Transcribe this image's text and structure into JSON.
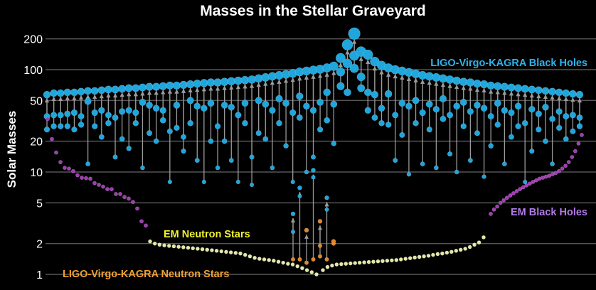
{
  "chart_data": {
    "type": "scatter",
    "title": "Masses in the Stellar Graveyard",
    "ylabel": "Solar Masses",
    "xlabel": "",
    "yscale": "log",
    "ylim": [
      0.9,
      240
    ],
    "yticks": [
      1,
      2,
      5,
      10,
      20,
      50,
      100,
      200
    ],
    "ytick_labels": [
      "1",
      "2",
      "5",
      "10",
      "20",
      "50",
      "100",
      "200"
    ],
    "grid": true,
    "colors": {
      "lvk_bh": "#1fa6dc",
      "em_bh": "#a23ab5",
      "em_ns": "#e4e8a6",
      "lvk_ns": "#e0862c",
      "arrow": "#9a9a9a",
      "lvk_bh_label": "#2fb2ea",
      "em_bh_label": "#b27ae6",
      "em_ns_label": "#f2f230",
      "lvk_ns_label": "#f0a030"
    },
    "labels": {
      "lvk_bh": "LIGO-Virgo-KAGRA Black Holes",
      "em_bh": "EM Black Holes",
      "em_ns": "EM Neutron Stars",
      "lvk_ns": "LIGO-Virgo-KAGRA Neutron Stars"
    },
    "bh_mergers_note_fields": [
      "m1",
      "m2",
      "final"
    ],
    "bh_mergers": [
      [
        35,
        26,
        57
      ],
      [
        36,
        28,
        59
      ],
      [
        36,
        28,
        59
      ],
      [
        37,
        28,
        60
      ],
      [
        38,
        26,
        60
      ],
      [
        35,
        29,
        61
      ],
      [
        49,
        12,
        62
      ],
      [
        38,
        28,
        62
      ],
      [
        40,
        22,
        63
      ],
      [
        36,
        30,
        64
      ],
      [
        34,
        14,
        64
      ],
      [
        39,
        21,
        65
      ],
      [
        40,
        17,
        66
      ],
      [
        38,
        30,
        66
      ],
      [
        48,
        11,
        67
      ],
      [
        45,
        24,
        68
      ],
      [
        42,
        20,
        68
      ],
      [
        40,
        32,
        69
      ],
      [
        25,
        8,
        70
      ],
      [
        45,
        27,
        70
      ],
      [
        22,
        16,
        71
      ],
      [
        50,
        30,
        72
      ],
      [
        44,
        13,
        73
      ],
      [
        42,
        8,
        74
      ],
      [
        47,
        20,
        75
      ],
      [
        28,
        11,
        75
      ],
      [
        45,
        20,
        76
      ],
      [
        43,
        13,
        77
      ],
      [
        36,
        8,
        78
      ],
      [
        47,
        30,
        79
      ],
      [
        14,
        7.5,
        80
      ],
      [
        50,
        24,
        82
      ],
      [
        46,
        21,
        84
      ],
      [
        40,
        11,
        86
      ],
      [
        52,
        30,
        88
      ],
      [
        47,
        18,
        90
      ],
      [
        38,
        8,
        92
      ],
      [
        55,
        34,
        95
      ],
      [
        44,
        10,
        97
      ],
      [
        40,
        14,
        99
      ],
      [
        48,
        26,
        101
      ],
      [
        60,
        32,
        104
      ],
      [
        46,
        19,
        108
      ],
      [
        95,
        69,
        130
      ],
      [
        115,
        60,
        175
      ],
      [
        137,
        103,
        225
      ],
      [
        85,
        66,
        150
      ],
      [
        60,
        40,
        140
      ],
      [
        57,
        34,
        120
      ],
      [
        42,
        30,
        110
      ],
      [
        58,
        29,
        104
      ],
      [
        36,
        13,
        100
      ],
      [
        47,
        23,
        97
      ],
      [
        44,
        9.5,
        94
      ],
      [
        50,
        30,
        91
      ],
      [
        38,
        12,
        88
      ],
      [
        46,
        26,
        86
      ],
      [
        41,
        11,
        84
      ],
      [
        52,
        33,
        82
      ],
      [
        36,
        15,
        80
      ],
      [
        44,
        10,
        78
      ],
      [
        48,
        28,
        76
      ],
      [
        39,
        13,
        75
      ],
      [
        45,
        24,
        73
      ],
      [
        42,
        9,
        72
      ],
      [
        35,
        18,
        70
      ],
      [
        47,
        29,
        69
      ],
      [
        40,
        12,
        68
      ],
      [
        38,
        22,
        67
      ],
      [
        44,
        28,
        66
      ],
      [
        30,
        8,
        65
      ],
      [
        41,
        16,
        64
      ],
      [
        37,
        26,
        63
      ],
      [
        43,
        20,
        62
      ],
      [
        33,
        12,
        61
      ],
      [
        39,
        27,
        60
      ],
      [
        35,
        21,
        59
      ],
      [
        36,
        25,
        58
      ],
      [
        34,
        28,
        57
      ]
    ],
    "ns_events": [
      {
        "parts": [
          [
            "ns",
            1.4
          ],
          [
            "bh",
            2.6
          ]
        ],
        "final": [
          "bh",
          3.9
        ]
      },
      {
        "parts": [
          [
            "ns",
            1.4
          ],
          [
            "bh",
            5.8
          ]
        ],
        "final": [
          "bh",
          7.0
        ]
      },
      {
        "parts": [
          [
            "ns",
            1.3
          ]
        ],
        "final": [
          "ns",
          2.7
        ]
      },
      {
        "parts": [
          [
            "ns",
            1.4
          ],
          [
            "bh",
            8.9
          ]
        ],
        "final": [
          "bh",
          10.4
        ]
      },
      {
        "parts": [
          [
            "ns",
            1.5
          ],
          [
            "ns",
            1.9
          ]
        ],
        "final": [
          "ns",
          3.3
        ]
      },
      {
        "parts": [
          [
            "ns",
            1.4
          ],
          [
            "bh",
            4.3
          ]
        ],
        "final": [
          "bh",
          5.6
        ]
      },
      {
        "parts": [
          [
            "ns",
            2.0
          ]
        ],
        "final": [
          "ns",
          2.1
        ]
      }
    ],
    "em_bh_left": [
      33,
      21,
      15.5,
      12.5,
      11,
      10.8,
      10.2,
      9.3,
      8.8,
      8.7,
      8.6,
      7.8,
      7.5,
      7.2,
      6.8,
      6.8,
      6.1,
      6.1,
      5.7,
      5.5,
      5.1,
      4.4,
      3.3,
      3.0
    ],
    "em_bh_right": [
      3.9,
      4.3,
      4.6,
      5.0,
      5.3,
      5.6,
      5.9,
      6.2,
      6.5,
      6.8,
      7.1,
      7.4,
      7.7,
      8.0,
      8.3,
      8.6,
      8.8,
      9.0,
      9.2,
      9.5,
      9.8,
      10.2,
      10.8,
      11.5,
      12.5,
      14,
      16,
      19,
      23
    ],
    "em_ns_left": [
      2.1,
      2.0,
      1.95,
      1.92,
      1.9,
      1.88,
      1.86,
      1.84,
      1.82,
      1.8,
      1.78,
      1.76,
      1.74,
      1.72,
      1.7,
      1.68,
      1.66,
      1.64,
      1.62,
      1.6,
      1.55,
      1.5,
      1.45,
      1.42,
      1.4,
      1.38,
      1.36,
      1.33,
      1.3,
      1.27,
      1.25,
      1.2,
      1.15,
      1.1,
      1.05,
      1.0
    ],
    "em_ns_right": [
      1.1,
      1.18,
      1.22,
      1.25,
      1.26,
      1.27,
      1.28,
      1.29,
      1.3,
      1.31,
      1.32,
      1.33,
      1.34,
      1.35,
      1.36,
      1.37,
      1.38,
      1.4,
      1.42,
      1.44,
      1.46,
      1.48,
      1.5,
      1.52,
      1.55,
      1.58,
      1.6,
      1.63,
      1.66,
      1.7,
      1.74,
      1.78,
      1.85,
      1.95,
      2.05,
      2.3
    ]
  }
}
